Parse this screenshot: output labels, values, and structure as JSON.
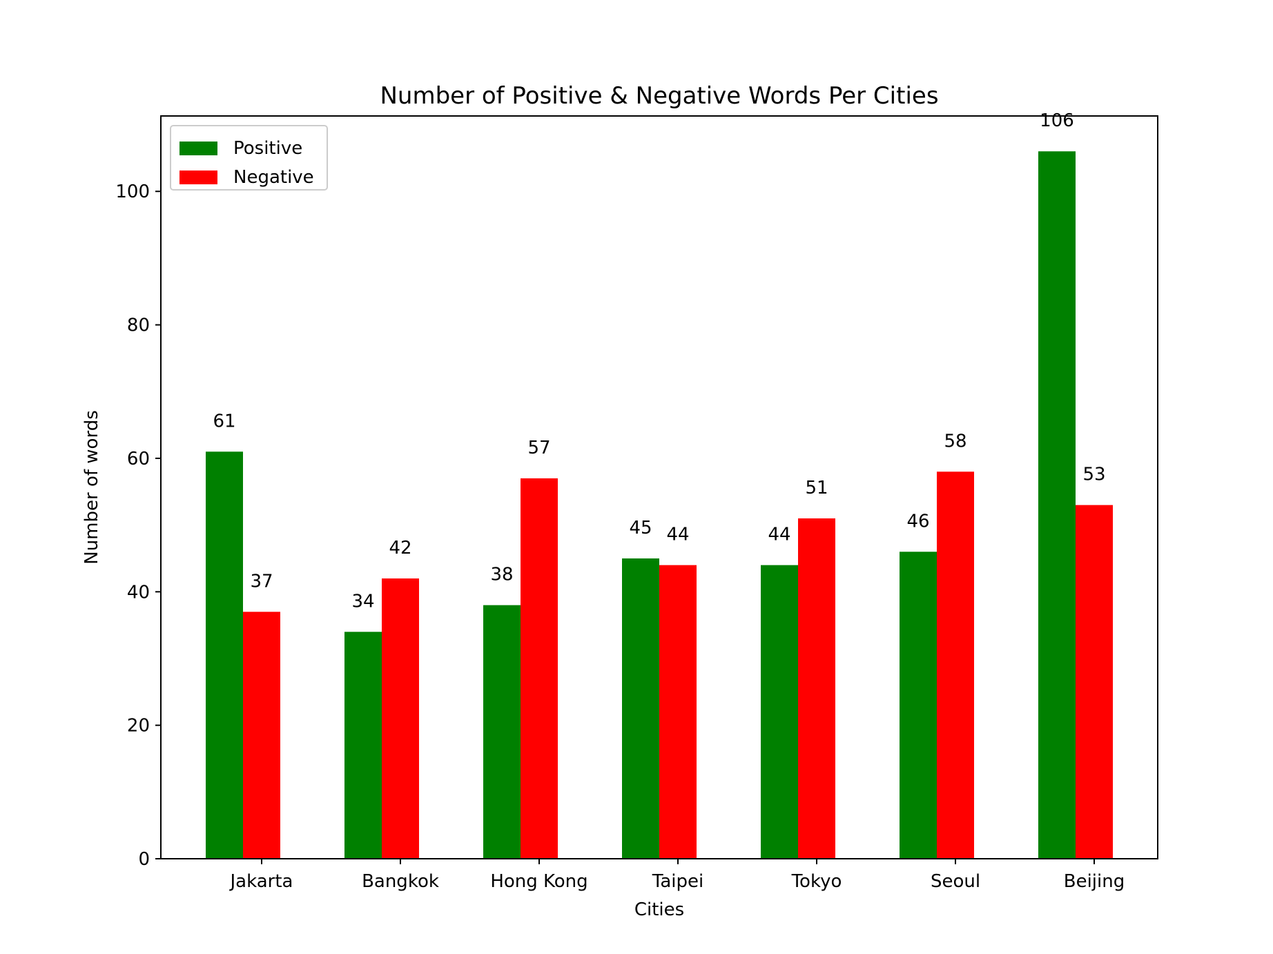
{
  "chart_data": {
    "type": "bar",
    "title": "Number of Positive & Negative Words Per Cities",
    "xlabel": "Cities",
    "ylabel": "Number of words",
    "categories": [
      "Jakarta",
      "Bangkok",
      "Hong Kong",
      "Taipei",
      "Tokyo",
      "Seoul",
      "Beijing"
    ],
    "series": [
      {
        "name": "Positive",
        "color": "#008000",
        "values": [
          61,
          34,
          38,
          45,
          44,
          46,
          106
        ]
      },
      {
        "name": "Negative",
        "color": "#ff0000",
        "values": [
          37,
          42,
          57,
          44,
          51,
          58,
          53
        ]
      }
    ],
    "ylim": [
      0,
      111.3
    ],
    "yticks": [
      0,
      20,
      40,
      60,
      80,
      100
    ],
    "grid": false,
    "legend_position": "top-left"
  }
}
